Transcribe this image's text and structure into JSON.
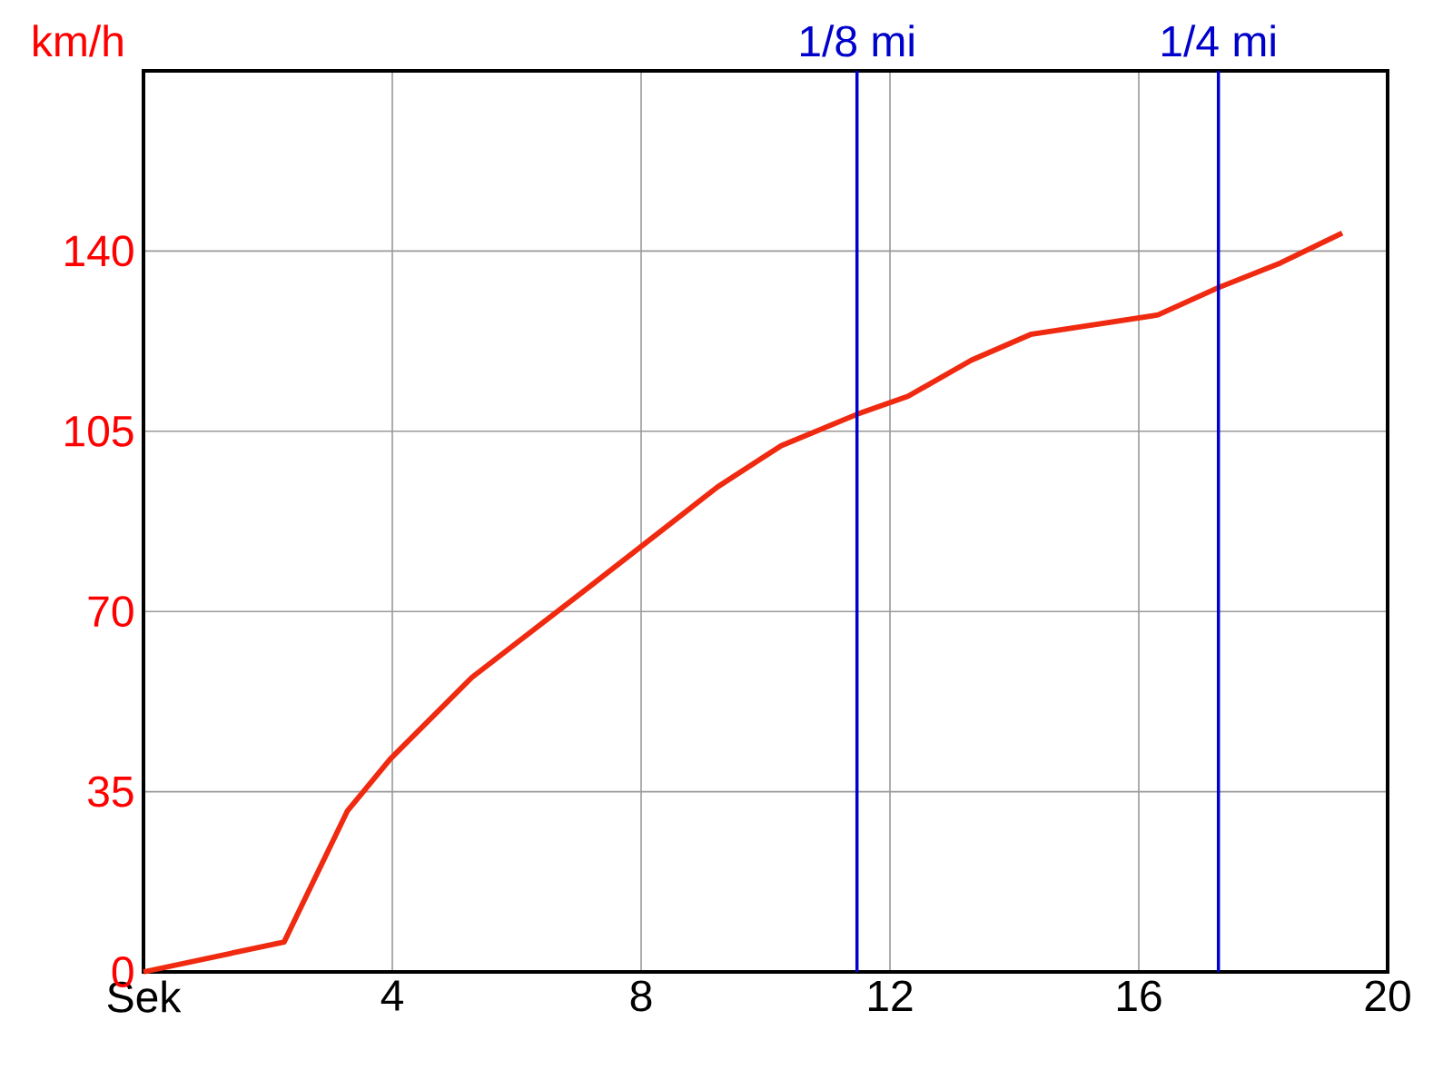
{
  "chart_data": {
    "type": "line",
    "ylabel": "km/h",
    "x": [
      0,
      2.26,
      3.28,
      3.97,
      5.28,
      7.18,
      9.23,
      10.25,
      11.47,
      12.29,
      13.31,
      14.26,
      16.31,
      17.28,
      18.28,
      19.27
    ],
    "values": [
      0,
      5.8,
      31.3,
      41.4,
      57.2,
      74.9,
      94.2,
      102.2,
      108.3,
      111.8,
      118.8,
      123.8,
      127.6,
      132.9,
      137.7,
      143.5
    ],
    "color": "#f02a10",
    "xlim": [
      0,
      20
    ],
    "ylim": [
      0,
      175
    ],
    "xticks": [
      {
        "value": 0,
        "label": "Sek"
      },
      4,
      8,
      12,
      16,
      20
    ],
    "yticks": [
      0,
      35,
      70,
      105,
      140
    ],
    "grid": true,
    "ref_lines": [
      {
        "axis": "x",
        "value": 11.47,
        "label": "1/8 mi",
        "color": "#0000cc"
      },
      {
        "axis": "x",
        "value": 17.28,
        "label": "1/4 mi",
        "color": "#0000cc"
      }
    ]
  }
}
